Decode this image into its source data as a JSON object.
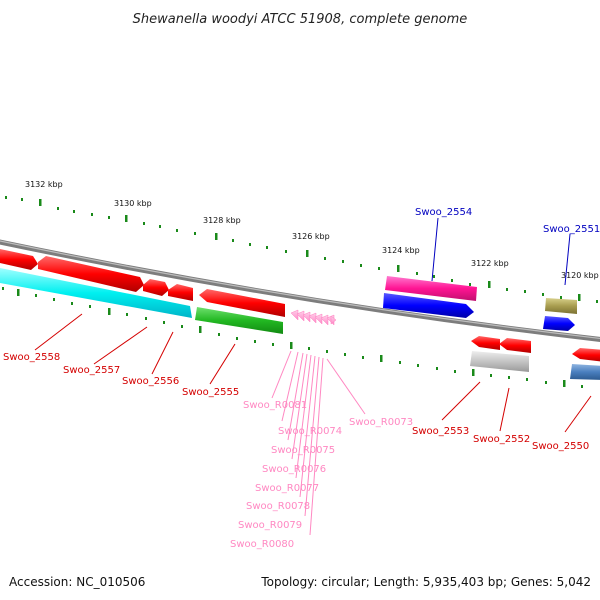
{
  "title": "Shewanella woodyi ATCC 51908, complete genome",
  "footer": {
    "accession": "Accession: NC_010506",
    "summary": "Topology: circular; Length: 5,935,403 bp; Genes: 5,042"
  },
  "ticks": [
    "3132 kbp",
    "3130 kbp",
    "3128 kbp",
    "3126 kbp",
    "3124 kbp",
    "3122 kbp",
    "3120 kbp"
  ],
  "labels": {
    "top": [
      "Swoo_2554",
      "Swoo_2551"
    ],
    "bottom": [
      "Swoo_2558",
      "Swoo_2557",
      "Swoo_2556",
      "Swoo_2555",
      "Swoo_2553",
      "Swoo_2552",
      "Swoo_2550"
    ],
    "rna": [
      "Swoo_R0081",
      "Swoo_R0074",
      "Swoo_R0075",
      "Swoo_R0076",
      "Swoo_R0077",
      "Swoo_R0078",
      "Swoo_R0079",
      "Swoo_R0080",
      "Swoo_R0073"
    ]
  },
  "colors": {
    "red_label": "#d40000",
    "blue_label": "#0000c0",
    "rna_label": "#ff88c2",
    "tick_green": "#1a8a1a"
  }
}
